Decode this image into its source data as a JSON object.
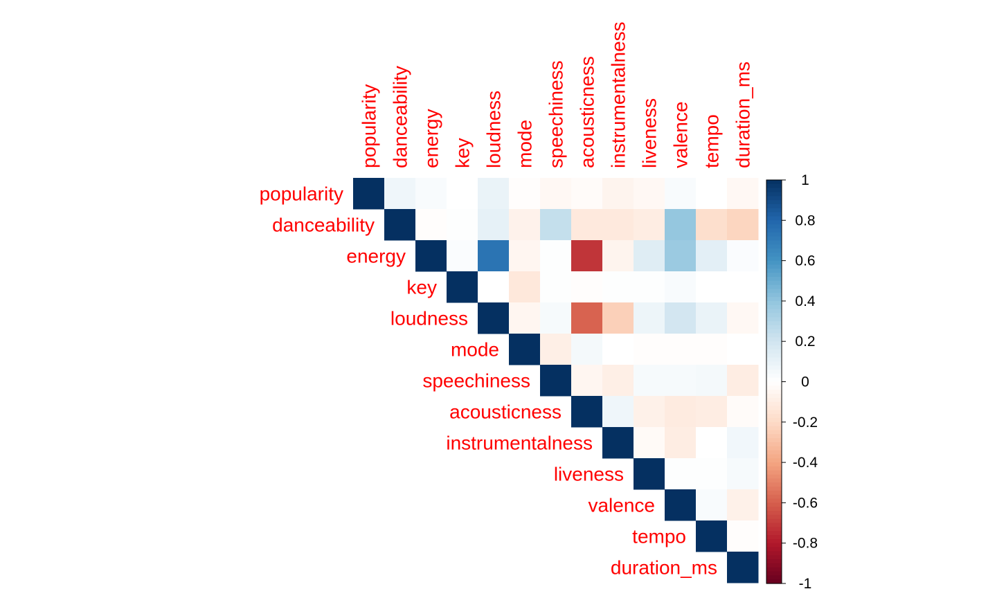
{
  "chart_data": {
    "type": "heatmap",
    "variables": [
      "popularity",
      "danceability",
      "energy",
      "key",
      "loudness",
      "mode",
      "speechiness",
      "acousticness",
      "instrumentalness",
      "liveness",
      "valence",
      "tempo",
      "duration_ms"
    ],
    "matrix_shape": "upper-triangle",
    "matrix": [
      [
        1.0,
        0.07,
        0.03,
        0.0,
        0.09,
        -0.01,
        -0.04,
        -0.02,
        -0.06,
        -0.04,
        0.03,
        0.0,
        -0.04
      ],
      [
        0.07,
        1.0,
        -0.01,
        0.01,
        0.11,
        -0.07,
        0.24,
        -0.12,
        -0.12,
        -0.1,
        0.39,
        -0.18,
        -0.22
      ],
      [
        0.03,
        -0.01,
        1.0,
        0.02,
        0.74,
        -0.05,
        0.01,
        -0.72,
        -0.06,
        0.14,
        0.37,
        0.12,
        0.02
      ],
      [
        0.0,
        0.01,
        0.02,
        1.0,
        0.0,
        -0.13,
        0.01,
        -0.01,
        0.01,
        0.01,
        0.03,
        0.0,
        0.0
      ],
      [
        0.09,
        0.11,
        0.74,
        0.0,
        1.0,
        -0.05,
        0.04,
        -0.59,
        -0.24,
        0.08,
        0.19,
        0.09,
        -0.04
      ],
      [
        -0.01,
        -0.07,
        -0.05,
        -0.13,
        -0.05,
        1.0,
        -0.09,
        0.05,
        0.0,
        -0.01,
        -0.01,
        -0.01,
        0.0
      ],
      [
        -0.04,
        0.24,
        0.01,
        0.01,
        0.04,
        -0.09,
        1.0,
        -0.05,
        -0.09,
        0.04,
        0.04,
        0.05,
        -0.1
      ],
      [
        -0.02,
        -0.12,
        -0.72,
        -0.01,
        -0.59,
        0.05,
        -0.05,
        1.0,
        0.07,
        -0.08,
        -0.11,
        -0.1,
        -0.02
      ],
      [
        -0.06,
        -0.12,
        -0.06,
        0.01,
        -0.24,
        0.0,
        -0.09,
        0.07,
        1.0,
        -0.03,
        -0.1,
        0.0,
        0.06
      ],
      [
        -0.04,
        -0.1,
        0.14,
        0.01,
        0.08,
        -0.01,
        0.04,
        -0.08,
        -0.03,
        1.0,
        0.01,
        0.01,
        0.04
      ],
      [
        0.03,
        0.39,
        0.37,
        0.03,
        0.19,
        -0.01,
        0.04,
        -0.11,
        -0.1,
        0.01,
        1.0,
        0.03,
        -0.08
      ],
      [
        0.0,
        -0.18,
        0.12,
        0.0,
        0.09,
        -0.01,
        0.05,
        -0.1,
        0.0,
        0.01,
        0.03,
        1.0,
        -0.01
      ],
      [
        -0.04,
        -0.22,
        0.02,
        0.0,
        -0.04,
        0.0,
        -0.1,
        -0.02,
        0.06,
        0.04,
        -0.08,
        -0.01,
        1.0
      ]
    ],
    "colorbar": {
      "range": [
        -1,
        1
      ],
      "ticks": [
        1,
        0.8,
        0.6,
        0.4,
        0.2,
        0,
        -0.2,
        -0.4,
        -0.6,
        -0.8,
        -1
      ],
      "tick_labels": [
        "1",
        "0.8",
        "0.6",
        "0.4",
        "0.2",
        "0",
        "-0.2",
        "-0.4",
        "-0.6",
        "-0.8",
        "-1"
      ]
    },
    "palette": [
      "#67001F",
      "#B2182B",
      "#D6604D",
      "#F4A582",
      "#FDDBC7",
      "#FFFFFF",
      "#D1E5F0",
      "#92C5DE",
      "#4393C3",
      "#2166AC",
      "#053061"
    ],
    "label_color": "#FF0000"
  }
}
